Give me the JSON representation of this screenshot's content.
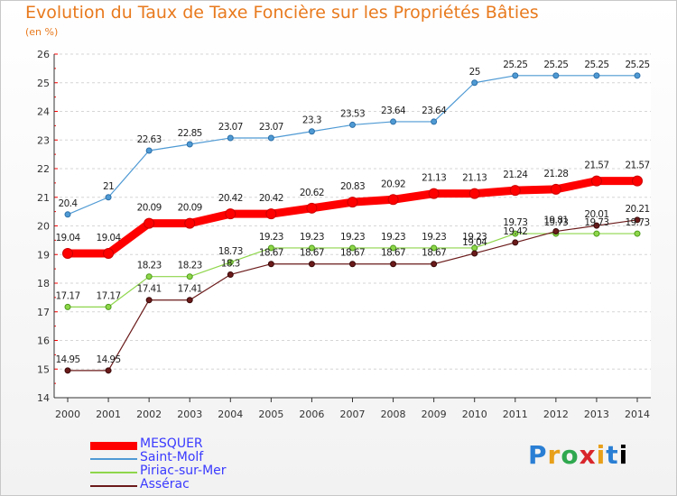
{
  "chart_data": {
    "type": "line",
    "title": "Evolution du Taux de Taxe Foncière sur les Propriétés Bâties",
    "subtitle": "(en %)",
    "xlabel": "",
    "ylabel": "(en %)",
    "categories": [
      "2000",
      "2001",
      "2002",
      "2003",
      "2004",
      "2005",
      "2006",
      "2007",
      "2008",
      "2009",
      "2010",
      "2011",
      "2012",
      "2013",
      "2014"
    ],
    "ylim": [
      14,
      26
    ],
    "yticks": [
      "14",
      "15",
      "16",
      "17",
      "18",
      "19",
      "20",
      "21",
      "22",
      "23",
      "24",
      "25",
      "26"
    ],
    "grid": "horizontal",
    "legend": "bottom-left",
    "series": [
      {
        "name": "MESQUER",
        "color": "#ff0000",
        "values": [
          19.04,
          19.04,
          20.09,
          20.09,
          20.42,
          20.42,
          20.62,
          20.83,
          20.92,
          21.13,
          21.13,
          21.24,
          21.28,
          21.57,
          21.57
        ],
        "labels": [
          "19.04",
          "19.04",
          "20.09",
          "20.09",
          "20.42",
          "20.42",
          "20.62",
          "20.83",
          "20.92",
          "21.13",
          "21.13",
          "21.24",
          "21.28",
          "21.57",
          "21.57"
        ]
      },
      {
        "name": "Saint-Molf",
        "color": "#4f9ad4",
        "values": [
          20.4,
          21,
          22.63,
          22.85,
          23.07,
          23.07,
          23.3,
          23.53,
          23.64,
          23.64,
          25,
          25.25,
          25.25,
          25.25,
          25.25
        ],
        "labels": [
          "20.4",
          "21",
          "22.63",
          "22.85",
          "23.07",
          "23.07",
          "23.3",
          "23.53",
          "23.64",
          "23.64",
          "25",
          "25.25",
          "25.25",
          "25.25",
          "25.25"
        ]
      },
      {
        "name": "Piriac-sur-Mer",
        "color": "#8ed64a",
        "values": [
          17.17,
          17.17,
          18.23,
          18.23,
          18.73,
          19.23,
          19.23,
          19.23,
          19.23,
          19.23,
          19.23,
          19.73,
          19.73,
          19.73,
          19.73
        ],
        "labels": [
          "17.17",
          "17.17",
          "18.23",
          "18.23",
          "18.73",
          "19.23",
          "19.23",
          "19.23",
          "19.23",
          "19.23",
          "19.23",
          "19.73",
          "19.73",
          "19.73",
          "19.73"
        ]
      },
      {
        "name": "Assérac",
        "color": "#6b1a1a",
        "values": [
          14.95,
          14.95,
          17.41,
          17.41,
          18.3,
          18.67,
          18.67,
          18.67,
          18.67,
          18.67,
          19.04,
          19.42,
          19.81,
          20.01,
          20.21
        ],
        "labels": [
          "14.95",
          "14.95",
          "17.41",
          "17.41",
          "18.3",
          "18.67",
          "18.67",
          "18.67",
          "18.67",
          "18.67",
          "19.04",
          "19.42",
          "19.81",
          "20.01",
          "20.21"
        ]
      }
    ]
  },
  "logo": {
    "letters": [
      "P",
      "r",
      "o",
      "x",
      "i",
      "t",
      "i"
    ],
    "text": "Proxiti"
  }
}
